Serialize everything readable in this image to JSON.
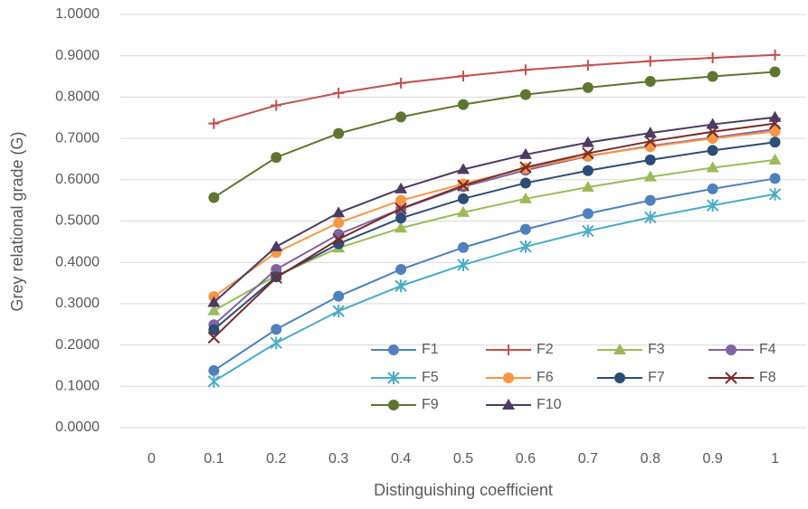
{
  "chart_data": {
    "type": "line",
    "x_label": "Distinguishing coefficient",
    "y_label": "Grey relational  grade (G)",
    "categories": [
      "0",
      "0.1",
      "0.2",
      "0.3",
      "0.4",
      "0.5",
      "0.6",
      "0.7",
      "0.8",
      "0.9",
      "1"
    ],
    "ylim": [
      0,
      1
    ],
    "yticks": [
      {
        "value": 0,
        "label": "0.0000"
      },
      {
        "value": 0.1,
        "label": "0.1000"
      },
      {
        "value": 0.2,
        "label": "0.2000"
      },
      {
        "value": 0.3,
        "label": "0.3000"
      },
      {
        "value": 0.4,
        "label": "0.4000"
      },
      {
        "value": 0.5,
        "label": "0.5000"
      },
      {
        "value": 0.6,
        "label": "0.6000"
      },
      {
        "value": 0.7,
        "label": "0.7000"
      },
      {
        "value": 0.8,
        "label": "0.8000"
      },
      {
        "value": 0.9,
        "label": "0.9000"
      },
      {
        "value": 1,
        "label": "1.0000"
      }
    ],
    "grid": true,
    "legend": "lower right",
    "series": [
      {
        "name": "F1",
        "color": "#4f81bd",
        "marker": "circle",
        "values": [
          null,
          0.138,
          0.238,
          0.318,
          0.383,
          0.436,
          0.48,
          0.518,
          0.55,
          0.578,
          0.603
        ]
      },
      {
        "name": "F2",
        "color": "#c0504d",
        "marker": "plus",
        "values": [
          null,
          0.736,
          0.78,
          0.81,
          0.834,
          0.851,
          0.866,
          0.877,
          0.887,
          0.895,
          0.902
        ]
      },
      {
        "name": "F3",
        "color": "#9bbb59",
        "marker": "triangle",
        "values": [
          null,
          0.283,
          0.368,
          0.435,
          0.483,
          0.521,
          0.554,
          0.582,
          0.607,
          0.629,
          0.648
        ]
      },
      {
        "name": "F4",
        "color": "#8064a2",
        "marker": "circle",
        "values": [
          null,
          0.249,
          0.383,
          0.468,
          0.529,
          0.583,
          0.623,
          0.657,
          0.682,
          0.702,
          0.722
        ]
      },
      {
        "name": "F5",
        "color": "#4bacc6",
        "marker": "star",
        "values": [
          null,
          0.112,
          0.205,
          0.282,
          0.343,
          0.394,
          0.438,
          0.476,
          0.509,
          0.538,
          0.565
        ]
      },
      {
        "name": "F6",
        "color": "#f79646",
        "marker": "circle",
        "values": [
          null,
          0.317,
          0.424,
          0.496,
          0.55,
          0.59,
          0.628,
          0.658,
          0.68,
          0.7,
          0.717
        ]
      },
      {
        "name": "F7",
        "color": "#2c4d75",
        "marker": "circle",
        "values": [
          null,
          0.237,
          0.365,
          0.445,
          0.507,
          0.554,
          0.592,
          0.622,
          0.648,
          0.671,
          0.691
        ]
      },
      {
        "name": "F8",
        "color": "#772c2a",
        "marker": "x",
        "values": [
          null,
          0.218,
          0.363,
          0.456,
          0.53,
          0.586,
          0.63,
          0.664,
          0.693,
          0.716,
          0.736
        ]
      },
      {
        "name": "F9",
        "color": "#5f7530",
        "marker": "circle",
        "values": [
          null,
          0.557,
          0.654,
          0.712,
          0.752,
          0.782,
          0.806,
          0.823,
          0.838,
          0.85,
          0.861
        ]
      },
      {
        "name": "F10",
        "color": "#4d3b62",
        "marker": "triangle",
        "values": [
          null,
          0.303,
          0.438,
          0.52,
          0.578,
          0.625,
          0.661,
          0.69,
          0.713,
          0.734,
          0.751
        ]
      }
    ]
  }
}
